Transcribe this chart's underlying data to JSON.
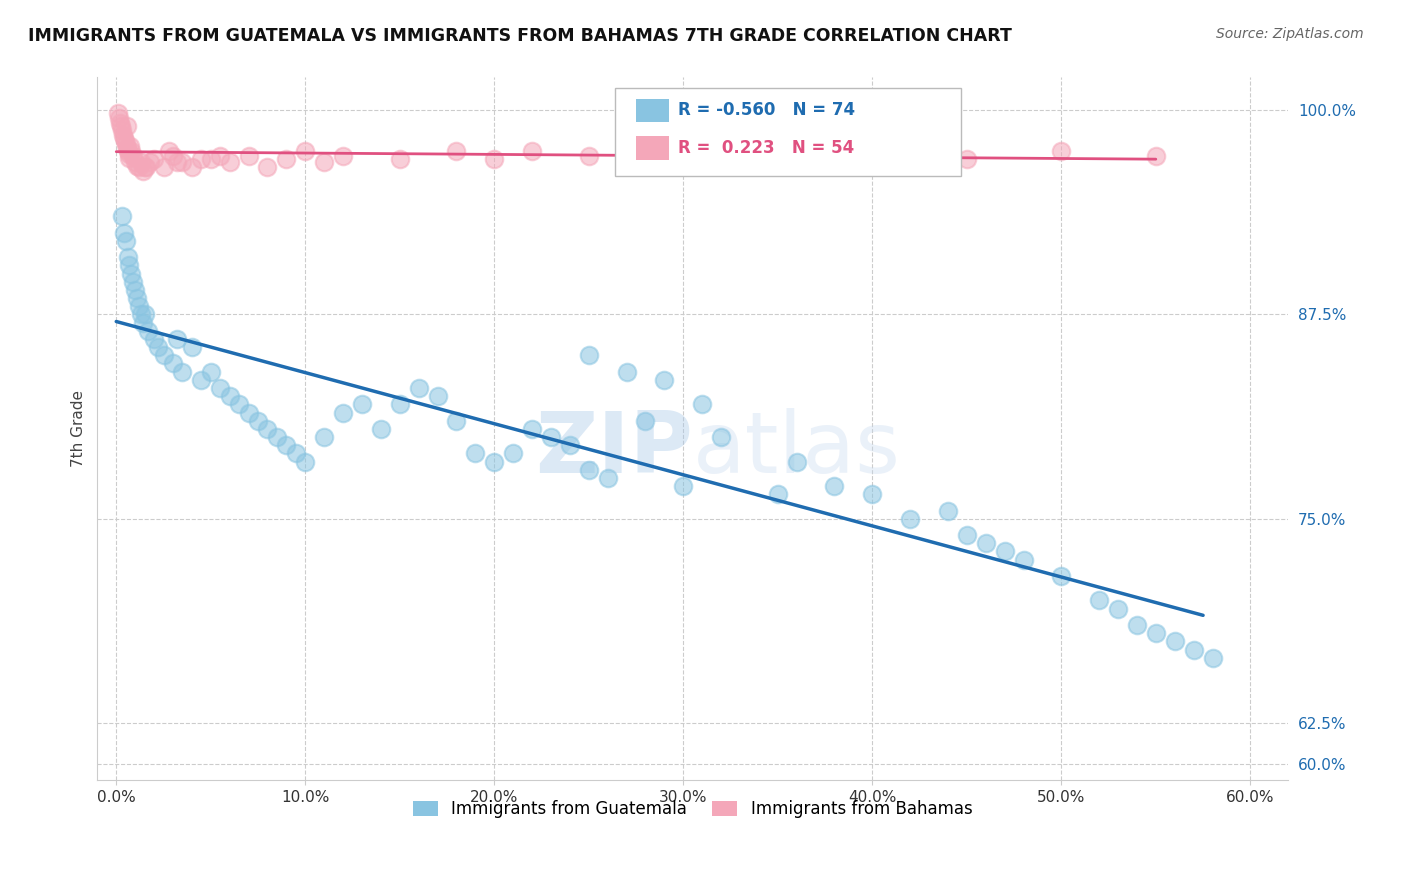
{
  "title": "IMMIGRANTS FROM GUATEMALA VS IMMIGRANTS FROM BAHAMAS 7TH GRADE CORRELATION CHART",
  "source_text": "Source: ZipAtlas.com",
  "ylabel": "7th Grade",
  "R_blue": -0.56,
  "N_blue": 74,
  "R_pink": 0.223,
  "N_pink": 54,
  "blue_color": "#89c4e1",
  "pink_color": "#f4a7b9",
  "blue_line_color": "#1f6cb0",
  "pink_line_color": "#e05080",
  "watermark_color": "#c5d8ee",
  "background_color": "#ffffff",
  "grid_color": "#cccccc",
  "xlim": [
    -1.0,
    62
  ],
  "ylim": [
    59,
    102
  ],
  "x_ticks": [
    0,
    10,
    20,
    30,
    40,
    50,
    60
  ],
  "y_ticks": [
    60.0,
    62.5,
    75.0,
    87.5,
    100.0
  ],
  "blue_x": [
    0.3,
    0.4,
    0.5,
    0.6,
    0.7,
    0.8,
    0.9,
    1.0,
    1.1,
    1.2,
    1.3,
    1.4,
    1.5,
    1.7,
    2.0,
    2.2,
    2.5,
    3.0,
    3.2,
    3.5,
    4.0,
    4.5,
    5.0,
    5.5,
    6.0,
    6.5,
    7.0,
    7.5,
    8.0,
    8.5,
    9.0,
    9.5,
    10.0,
    11.0,
    12.0,
    13.0,
    14.0,
    15.0,
    16.0,
    17.0,
    18.0,
    19.0,
    20.0,
    21.0,
    22.0,
    23.0,
    24.0,
    25.0,
    26.0,
    28.0,
    30.0,
    32.0,
    35.0,
    36.0,
    38.0,
    40.0,
    42.0,
    44.0,
    45.0,
    46.0,
    47.0,
    48.0,
    50.0,
    52.0,
    53.0,
    54.0,
    55.0,
    56.0,
    57.0,
    58.0,
    25.0,
    27.0,
    29.0,
    31.0
  ],
  "blue_y": [
    93.5,
    92.5,
    92.0,
    91.0,
    90.5,
    90.0,
    89.5,
    89.0,
    88.5,
    88.0,
    87.5,
    87.0,
    87.5,
    86.5,
    86.0,
    85.5,
    85.0,
    84.5,
    86.0,
    84.0,
    85.5,
    83.5,
    84.0,
    83.0,
    82.5,
    82.0,
    81.5,
    81.0,
    80.5,
    80.0,
    79.5,
    79.0,
    78.5,
    80.0,
    81.5,
    82.0,
    80.5,
    82.0,
    83.0,
    82.5,
    81.0,
    79.0,
    78.5,
    79.0,
    80.5,
    80.0,
    79.5,
    78.0,
    77.5,
    81.0,
    77.0,
    80.0,
    76.5,
    78.5,
    77.0,
    76.5,
    75.0,
    75.5,
    74.0,
    73.5,
    73.0,
    72.5,
    71.5,
    70.0,
    69.5,
    68.5,
    68.0,
    67.5,
    67.0,
    66.5,
    85.0,
    84.0,
    83.5,
    82.0
  ],
  "pink_x": [
    0.1,
    0.15,
    0.2,
    0.25,
    0.3,
    0.35,
    0.4,
    0.45,
    0.5,
    0.55,
    0.6,
    0.65,
    0.7,
    0.8,
    0.9,
    1.0,
    1.1,
    1.2,
    1.4,
    1.6,
    1.8,
    2.0,
    2.5,
    3.0,
    3.5,
    4.0,
    5.0,
    6.0,
    7.0,
    8.0,
    9.0,
    10.0,
    11.0,
    12.0,
    15.0,
    18.0,
    20.0,
    22.0,
    25.0,
    28.0,
    30.0,
    35.0,
    40.0,
    45.0,
    50.0,
    55.0,
    3.2,
    4.5,
    5.5,
    1.5,
    0.55,
    0.75,
    2.8,
    1.3
  ],
  "pink_y": [
    99.8,
    99.5,
    99.2,
    99.0,
    98.8,
    98.5,
    98.3,
    98.1,
    97.9,
    97.7,
    97.5,
    97.3,
    97.1,
    97.5,
    97.2,
    96.8,
    96.6,
    96.5,
    96.3,
    96.5,
    96.8,
    97.0,
    96.5,
    97.2,
    96.8,
    96.5,
    97.0,
    96.8,
    97.2,
    96.5,
    97.0,
    97.5,
    96.8,
    97.2,
    97.0,
    97.5,
    97.0,
    97.5,
    97.2,
    97.0,
    97.5,
    97.2,
    97.5,
    97.0,
    97.5,
    97.2,
    96.8,
    97.0,
    97.2,
    96.5,
    99.0,
    97.8,
    97.5,
    96.8
  ]
}
